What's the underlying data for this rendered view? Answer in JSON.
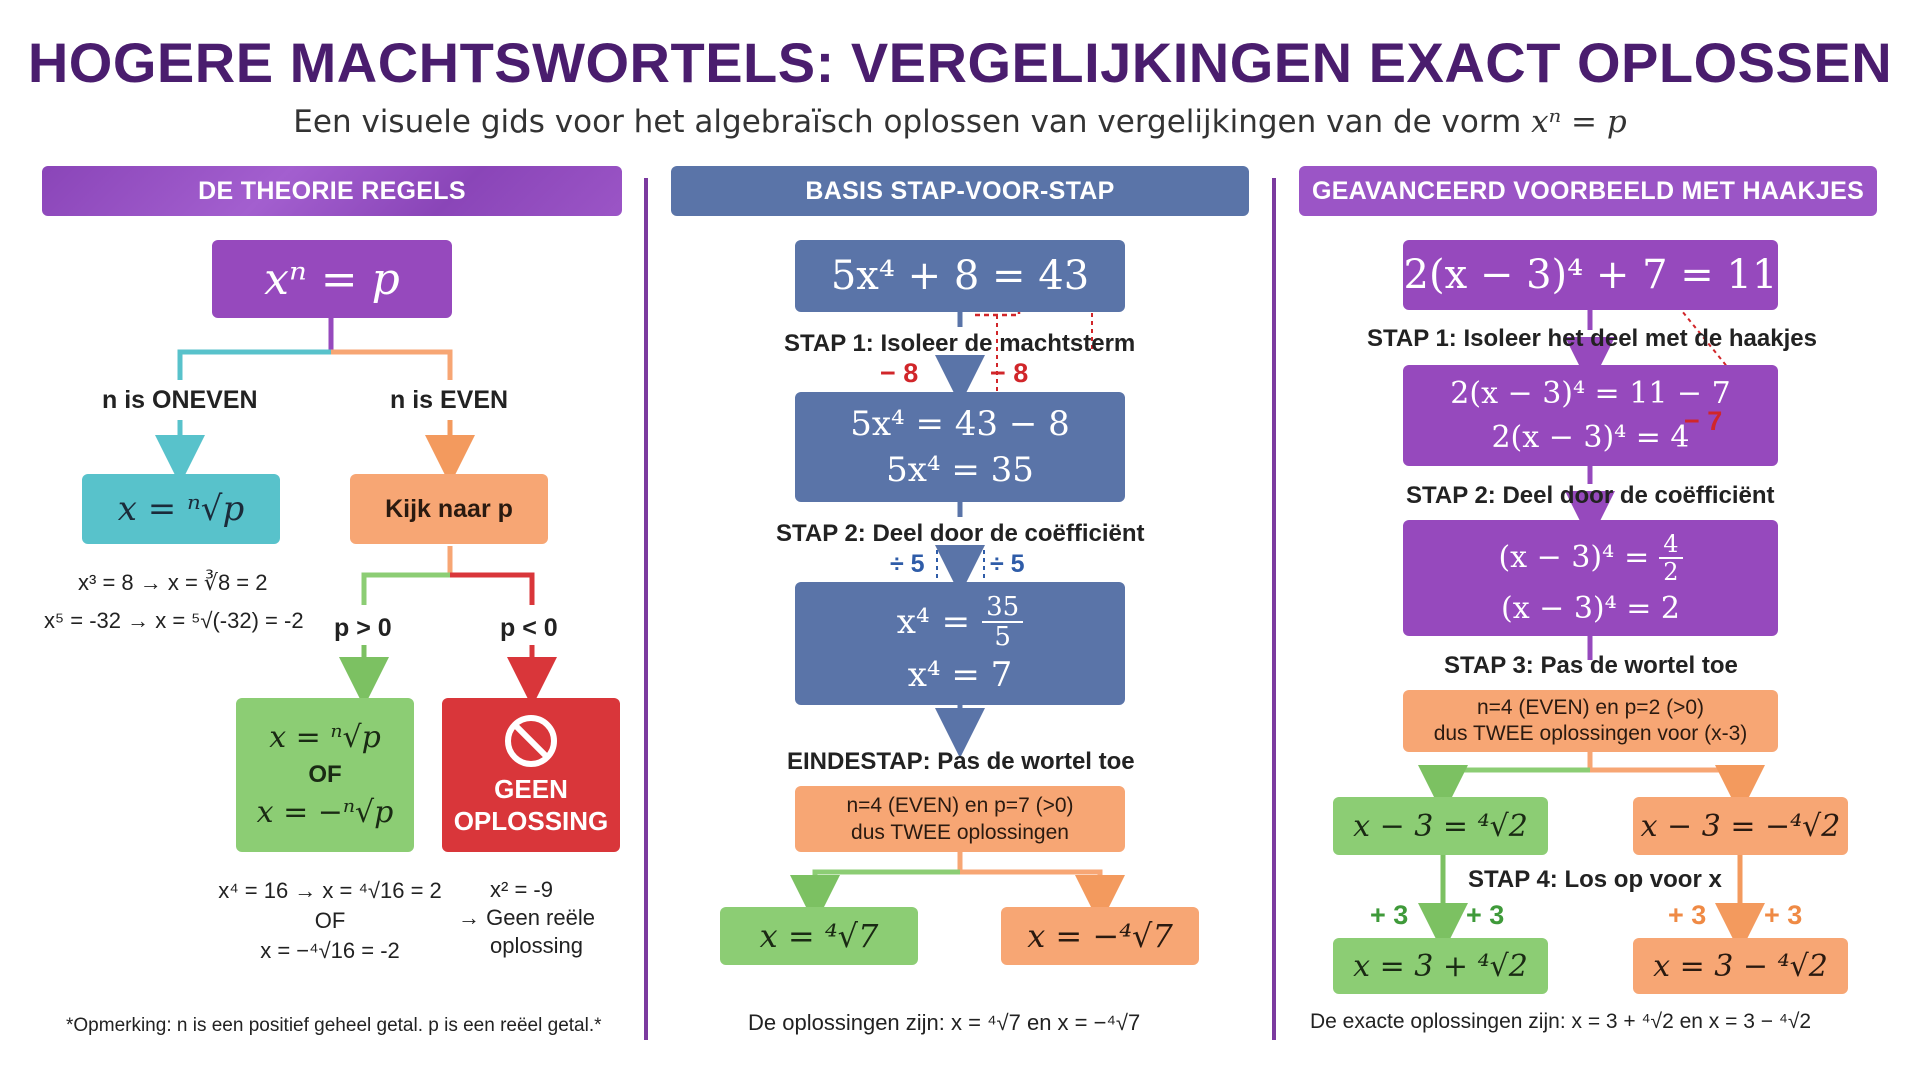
{
  "title": "HOGERE MACHTSWORTELS: VERGELIJKINGEN EXACT OPLOSSEN",
  "subtitle_text": "Een visuele gids voor het algebraïsch oplossen van vergelijkingen van de vorm",
  "subtitle_math": "xⁿ = p",
  "colors": {
    "title": "#4a1d6e",
    "purple": "#9649bd",
    "blue": "#5a74a8",
    "teal": "#58c2cb",
    "orange": "#f7a674",
    "green": "#8ccd74",
    "red": "#d9363a",
    "divider": "#7b3a9f"
  },
  "theory": {
    "banner": "DE THEORIE REGELS",
    "top": "xⁿ = p",
    "branch_odd": "n is ONEVEN",
    "branch_even": "n is EVEN",
    "odd_result": "x = ⁿ√p",
    "odd_ex1": "x³ = 8 → x = ∛8 = 2",
    "odd_ex2": "x⁵ = -32 → x = ⁵√(-32) = -2",
    "even_box": "Kijk naar p",
    "p_pos": "p > 0",
    "p_neg": "p < 0",
    "pos_line1": "x = ⁿ√p",
    "pos_or": "OF",
    "pos_line2": "x = −ⁿ√p",
    "no_icon": "prohibited-icon",
    "no_line1": "GEEN",
    "no_line2": "OPLOSSING",
    "pos_ex1": "x⁴ = 16 → x = ⁴√16 = 2",
    "pos_ex_or": "OF",
    "pos_ex2": "x = −⁴√16 = -2",
    "neg_ex1": "x² = -9",
    "neg_ex2": "→ Geen reële",
    "neg_ex3": "oplossing",
    "note": "*Opmerking: n is een positief geheel getal. p is een reëel getal.*"
  },
  "basic": {
    "banner": "BASIS STAP-VOOR-STAP",
    "eq_pre": "5x⁴ + ",
    "eq_hl": "8",
    "eq_post": " = 43",
    "step1": "STAP 1: Isoleer de machtsterm",
    "minus_left": "− 8",
    "minus_right": "− 8",
    "s1_line1_left": "5x⁴ =",
    "s1_line1_right": "43 − 8",
    "s1_line2": "5x⁴ = 35",
    "step2": "STAP 2: Deel door de coëfficiënt",
    "div_left": "÷ 5",
    "div_right": "÷ 5",
    "s2_lhs": "x⁴",
    "s2_eq": "=",
    "s2_num": "35",
    "s2_den": "5",
    "s2_line2": "x⁴ = 7",
    "final_step": "EINDESTAP: Pas de wortel toe",
    "final_box1": "n=4 (EVEN) en p=7 (>0)",
    "final_box2": "dus TWEE oplossingen",
    "sol_pos": "x = ⁴√7",
    "sol_neg": "x = −⁴√7",
    "conclusion": "De oplossingen zijn: x = ⁴√7 en x = −⁴√7"
  },
  "advanced": {
    "banner": "GEAVANCEERD VOORBEELD MET HAAKJES",
    "eq_pre": "2(x − 3)⁴ + ",
    "eq_hl": "7",
    "eq_post": " = 11",
    "step1": "STAP 1: Isoleer het deel met de haakjes",
    "s1_line1": "2(x − 3)⁴ = 11 − 7",
    "s1_line2": "2(x − 3)⁴ = 4",
    "minus7": "− 7",
    "step2": "STAP 2: Deel door de coëfficiënt",
    "s2_lhs": "(x − 3)⁴",
    "s2_eq": "=",
    "s2_num": "4",
    "s2_den": "2",
    "s2_line2": "(x − 3)⁴ = 2",
    "step3": "STAP 3: Pas de wortel toe",
    "s3_box1": "n=4 (EVEN) en p=2 (>0)",
    "s3_box2": "dus TWEE oplossingen voor (x-3)",
    "branch_pos": "x − 3 = ⁴√2",
    "branch_neg": "x − 3 = −⁴√2",
    "step4": "STAP 4: Los op voor x",
    "plus3_a": "+ 3",
    "plus3_b": "+ 3",
    "plus3_c": "+ 3",
    "plus3_d": "+ 3",
    "final_pos": "x = 3 + ⁴√2",
    "final_neg": "x = 3 − ⁴√2",
    "conclusion": "De exacte oplossingen zijn: x = 3 + ⁴√2 en x = 3 − ⁴√2"
  }
}
